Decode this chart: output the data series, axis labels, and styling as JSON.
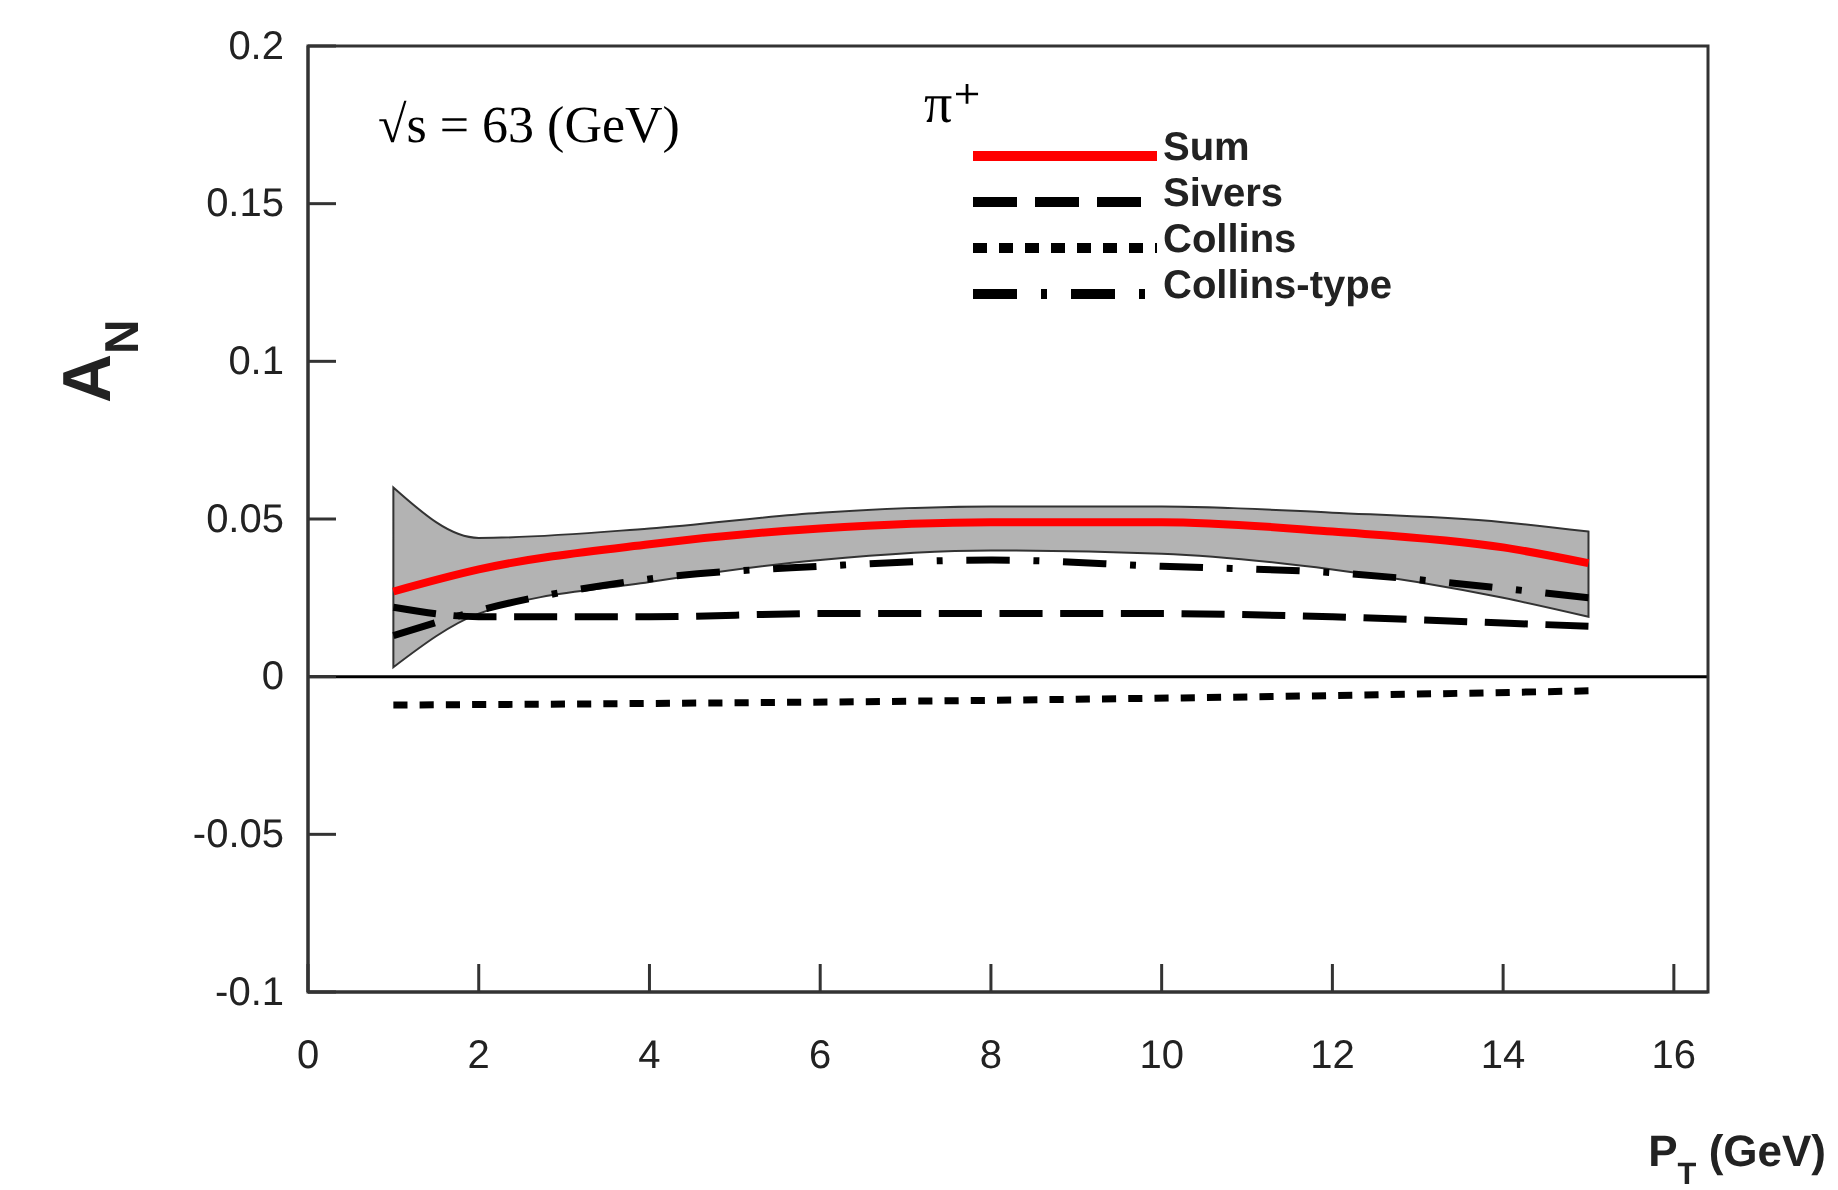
{
  "chart_data": {
    "type": "line",
    "xlabel": "P$_{T}$ (GeV)",
    "ylabel": "A$_{N}$",
    "annotations": [
      "√s = 63 (GeV)",
      "π⁺"
    ],
    "xlim": [
      0,
      16.4
    ],
    "xticks": [
      0,
      2,
      4,
      6,
      8,
      10,
      12,
      14,
      16
    ],
    "ylim": [
      -0.1,
      0.2
    ],
    "yticks": [
      -0.1,
      -0.05,
      0,
      0.05,
      0.1,
      0.15,
      0.2
    ],
    "ref_lines": [
      {
        "axis": "y",
        "value": 0,
        "color": "#000000"
      }
    ],
    "legend": "top right",
    "grid": false,
    "marker": "none",
    "series": [
      {
        "name": "Sum",
        "color": "#ff0000",
        "line_style": "solid",
        "x": [
          1,
          2,
          4,
          6,
          8,
          10,
          12,
          14,
          15
        ],
        "values": [
          0.027,
          0.034,
          0.042,
          0.047,
          0.049,
          0.049,
          0.046,
          0.041,
          0.036
        ],
        "upper": [
          0.06,
          0.044,
          0.047,
          0.052,
          0.054,
          0.054,
          0.052,
          0.049,
          0.046
        ],
        "lower": [
          0.003,
          0.02,
          0.03,
          0.037,
          0.04,
          0.039,
          0.034,
          0.025,
          0.019
        ]
      },
      {
        "name": "Sivers",
        "color": "#000000",
        "line_style": "dashed",
        "x": [
          1,
          2,
          4,
          6,
          8,
          10,
          12,
          14,
          15
        ],
        "values": [
          0.022,
          0.019,
          0.019,
          0.02,
          0.02,
          0.02,
          0.019,
          0.017,
          0.016
        ]
      },
      {
        "name": "Collins",
        "color": "#000000",
        "line_style": "dotted",
        "x": [
          1,
          4,
          8,
          12,
          15
        ],
        "values": [
          -0.009,
          -0.0085,
          -0.0075,
          -0.006,
          -0.0045
        ]
      },
      {
        "name": "Collins-type",
        "color": "#000000",
        "line_style": "dashdot",
        "x": [
          1,
          2,
          4,
          6,
          8,
          10,
          12,
          14,
          15
        ],
        "values": [
          0.013,
          0.021,
          0.031,
          0.035,
          0.037,
          0.035,
          0.033,
          0.028,
          0.025
        ]
      }
    ]
  }
}
